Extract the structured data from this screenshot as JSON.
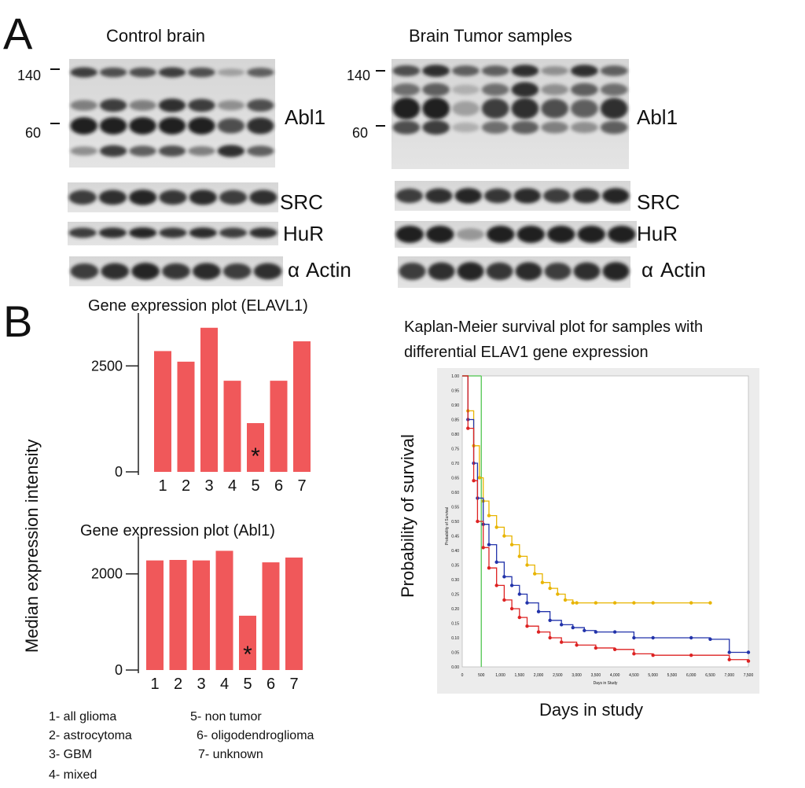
{
  "panel_a": {
    "label": "A",
    "control_title": "Control brain",
    "tumor_title": "Brain Tumor  samples",
    "mw_140": "140",
    "mw_60": "60",
    "blots": [
      "Abl1",
      "SRC",
      "HuR",
      "Actin"
    ],
    "alpha_symbol": "α",
    "control_lanes": 7,
    "tumor_lanes": 8
  },
  "panel_b": {
    "label": "B",
    "ylabel_shared": "Median expression intensity",
    "asterisk": "*",
    "legend": [
      "1- all glioma",
      "2- astrocytoma",
      "3- GBM",
      "4- mixed",
      "5-  non tumor",
      "6-  oligodendroglioma",
      "7-  unknown"
    ],
    "km": {
      "title_line1": "Kaplan-Meier survival  plot for samples with",
      "title_line2": "differential ELAV1 gene expression",
      "ylabel": "Probability of survival",
      "xlabel": "Days in study",
      "inner_ylabel": "Probability of Survival",
      "inner_xlabel": "Days in Study"
    }
  },
  "chart_data": [
    {
      "type": "bar",
      "title": "Gene expression plot (ELAVL1)",
      "categories": [
        "1",
        "2",
        "3",
        "4",
        "5",
        "6",
        "7"
      ],
      "values": [
        2850,
        2600,
        3400,
        2150,
        1150,
        2150,
        3080
      ],
      "ylabel": "Median expression intensity",
      "yticks": [
        "2500",
        "0"
      ],
      "ylim": [
        0,
        3600
      ],
      "color": "#f0585a",
      "annotation": {
        "category": "5",
        "text": "*"
      }
    },
    {
      "type": "bar",
      "title": "Gene expression plot (Abl1)",
      "categories": [
        "1",
        "2",
        "3",
        "4",
        "5",
        "6",
        "7"
      ],
      "values": [
        2280,
        2290,
        2280,
        2480,
        1130,
        2240,
        2340
      ],
      "ylabel": "Median expression intensity",
      "yticks": [
        "2000",
        "0"
      ],
      "ylim": [
        0,
        2650
      ],
      "color": "#f0585a",
      "annotation": {
        "category": "5",
        "text": "*"
      }
    },
    {
      "type": "line",
      "title": "Kaplan-Meier survival  plot for samples with differential ELAV1 gene expression",
      "xlabel": "Days in study",
      "ylabel": "Probability of survival",
      "xlim": [
        0,
        7500
      ],
      "ylim": [
        0,
        1
      ],
      "xticks": [
        "0",
        "500",
        "1,000",
        "1,500",
        "2,000",
        "2,500",
        "3,000",
        "3,500",
        "4,000",
        "4,500",
        "5,000",
        "5,500",
        "6,000",
        "6,500",
        "7,000",
        "7,500"
      ],
      "yticks": [
        "1.00",
        "0.95",
        "0.90",
        "0.85",
        "0.80",
        "0.75",
        "0.70",
        "0.65",
        "0.60",
        "0.55",
        "0.50",
        "0.45",
        "0.40",
        "0.35",
        "0.30",
        "0.25",
        "0.20",
        "0.15",
        "0.10",
        "0.05",
        "0.00"
      ],
      "vline_x": 500,
      "vline_color": "#66cc66",
      "series": [
        {
          "name": "yellow",
          "color": "#e8b400",
          "x": [
            0,
            150,
            300,
            450,
            550,
            700,
            900,
            1100,
            1300,
            1500,
            1700,
            1900,
            2100,
            2300,
            2500,
            2700,
            2900,
            3000,
            3500,
            4000,
            4500,
            5000,
            6000,
            6500
          ],
          "y": [
            1.0,
            0.88,
            0.76,
            0.65,
            0.57,
            0.52,
            0.48,
            0.45,
            0.42,
            0.38,
            0.35,
            0.32,
            0.29,
            0.27,
            0.25,
            0.23,
            0.22,
            0.22,
            0.22,
            0.22,
            0.22,
            0.22,
            0.22,
            0.22
          ]
        },
        {
          "name": "blue",
          "color": "#2233aa",
          "x": [
            0,
            150,
            300,
            400,
            550,
            700,
            900,
            1100,
            1300,
            1500,
            1700,
            2000,
            2300,
            2600,
            2900,
            3200,
            3500,
            4000,
            4500,
            5000,
            6000,
            6500,
            7000,
            7500
          ],
          "y": [
            1.0,
            0.85,
            0.7,
            0.58,
            0.49,
            0.42,
            0.36,
            0.31,
            0.28,
            0.25,
            0.22,
            0.19,
            0.16,
            0.145,
            0.135,
            0.125,
            0.12,
            0.12,
            0.1,
            0.1,
            0.1,
            0.095,
            0.05,
            0.05
          ]
        },
        {
          "name": "red",
          "color": "#dd2222",
          "x": [
            0,
            150,
            300,
            400,
            550,
            700,
            900,
            1100,
            1300,
            1500,
            1700,
            2000,
            2300,
            2600,
            3000,
            3500,
            4000,
            4500,
            5000,
            6000,
            7000,
            7500
          ],
          "y": [
            1.0,
            0.82,
            0.64,
            0.5,
            0.41,
            0.34,
            0.28,
            0.23,
            0.2,
            0.17,
            0.14,
            0.12,
            0.1,
            0.085,
            0.075,
            0.065,
            0.06,
            0.045,
            0.04,
            0.04,
            0.025,
            0.02
          ]
        }
      ]
    }
  ]
}
